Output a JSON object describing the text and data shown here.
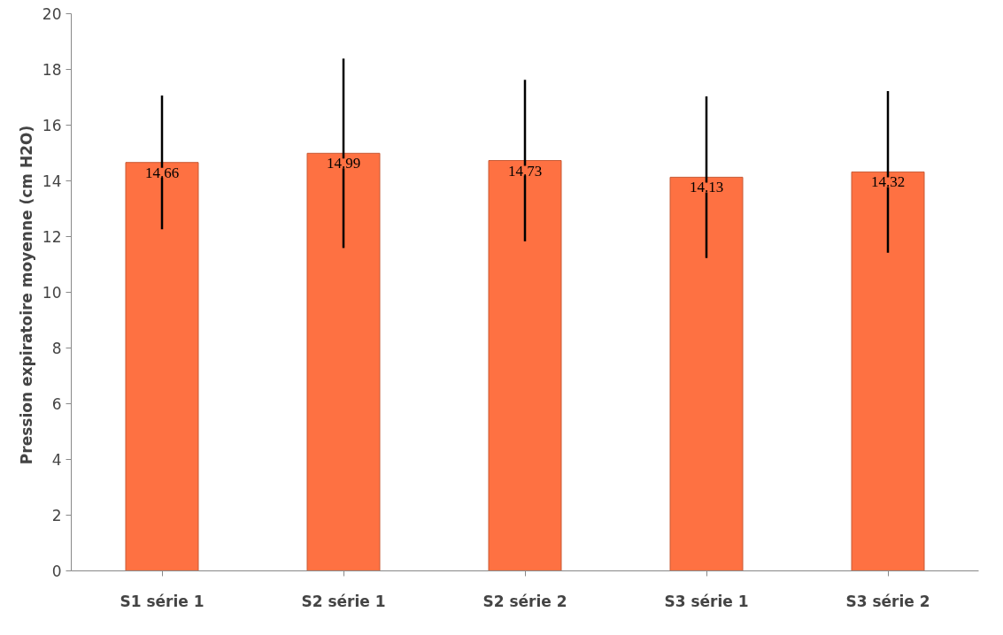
{
  "chart_data": {
    "type": "bar",
    "ylabel": "Pression expiratoire  moyenne (cm H2O)",
    "categories": [
      "S1 série 1",
      "S2 série 1",
      "S2 série 2",
      "S3 série 1",
      "S3 série 2"
    ],
    "values": [
      14.66,
      14.99,
      14.73,
      14.13,
      14.32
    ],
    "errors": [
      2.4,
      3.4,
      2.9,
      2.9,
      2.9
    ],
    "color": "#fe7142",
    "ylim": [
      0,
      20
    ],
    "yticks": [
      0,
      2,
      4,
      6,
      8,
      10,
      12,
      14,
      16,
      18,
      20
    ],
    "grid": false,
    "data_labels": true
  }
}
